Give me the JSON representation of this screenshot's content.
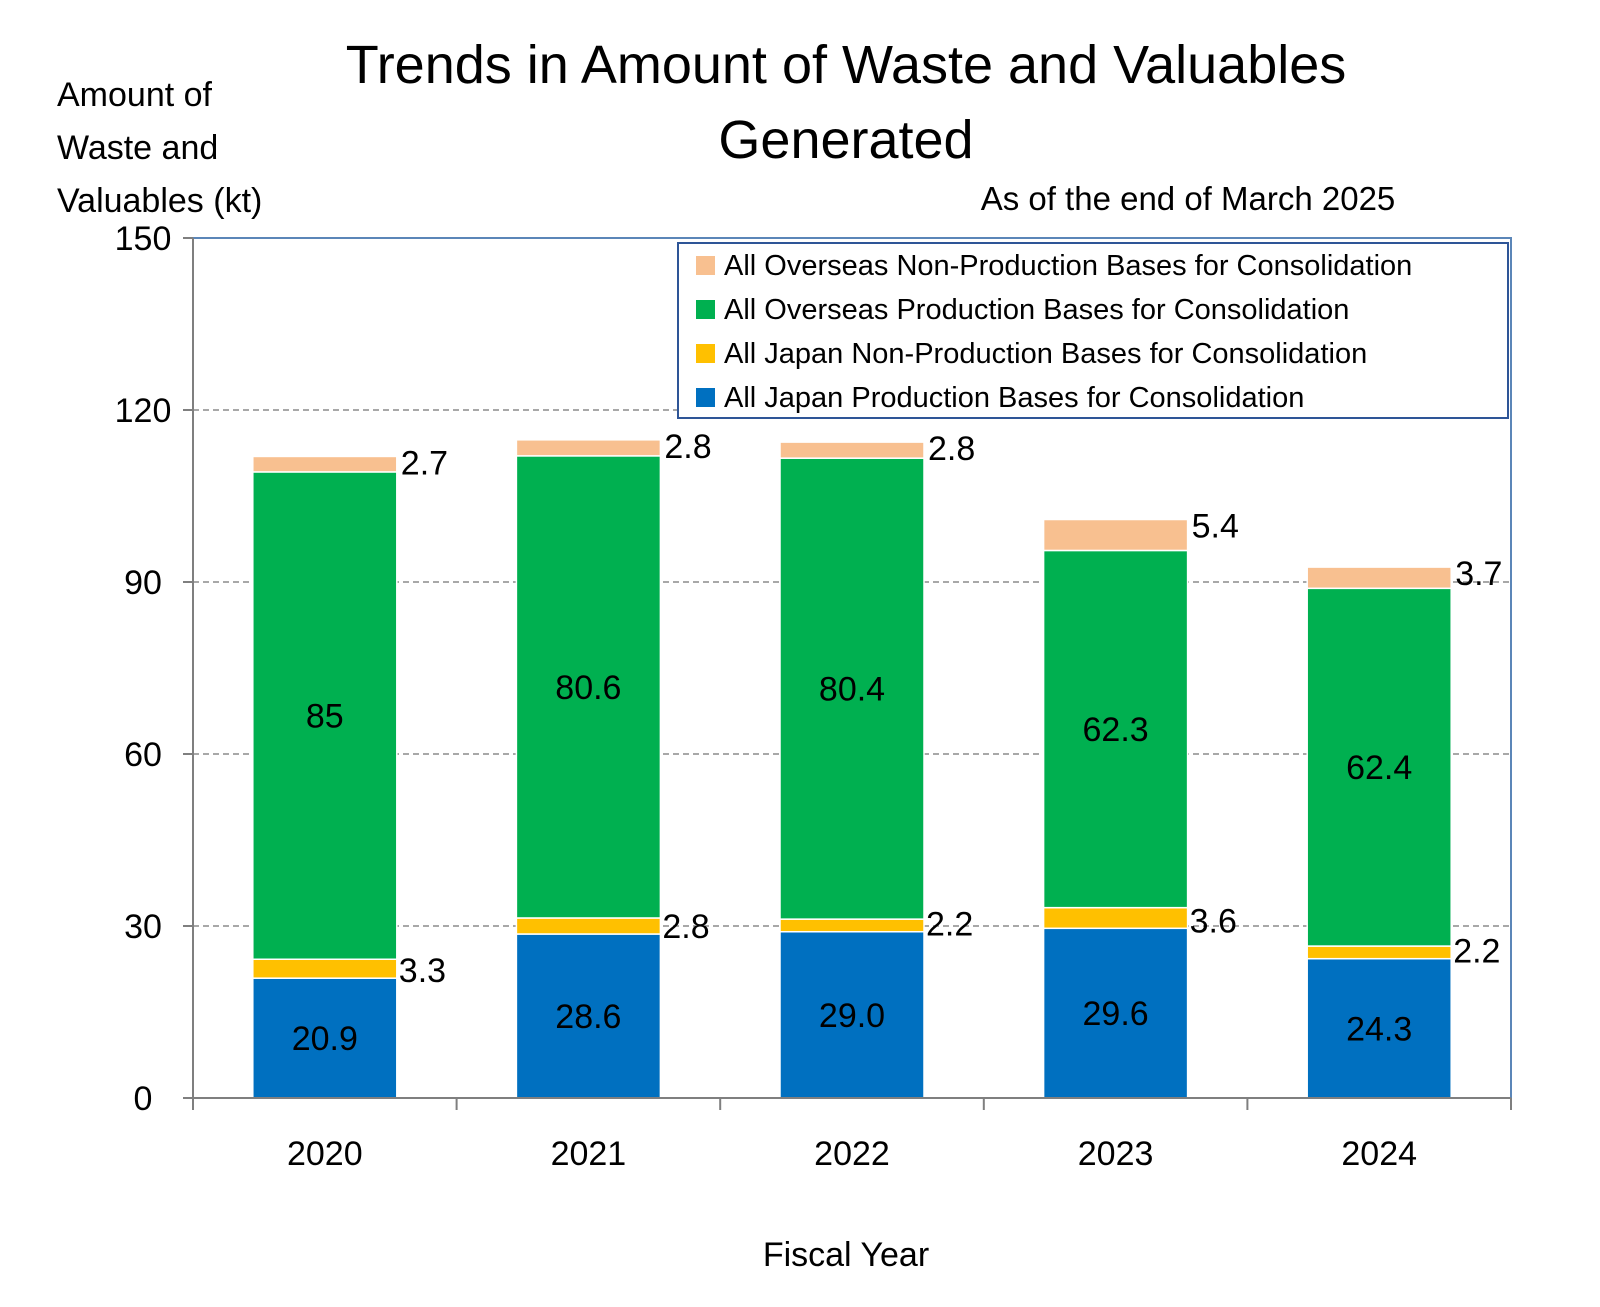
{
  "chart_data": {
    "type": "bar",
    "stacked": true,
    "title_lines": [
      "Trends in Amount of Waste and Valuables",
      "Generated"
    ],
    "subtitle": "As of the end of  March  2025",
    "ylabel_lines": [
      "Amount of",
      "Waste and",
      "Valuables (kt)"
    ],
    "xlabel": "Fiscal Year",
    "categories": [
      "2020",
      "2021",
      "2022",
      "2023",
      "2024"
    ],
    "ylim": [
      0,
      150
    ],
    "yticks": [
      0,
      30,
      60,
      90,
      120,
      150
    ],
    "grid": true,
    "legend_position": "top-right",
    "series": [
      {
        "name": "All Japan Production Bases for Consolidation",
        "color": "#0070C0",
        "values": [
          20.9,
          28.6,
          29.0,
          29.6,
          24.3
        ],
        "labels": [
          "20.9",
          "28.6",
          "29.0",
          "29.6",
          "24.3"
        ]
      },
      {
        "name": "All Japan Non-Production Bases for Consolidation",
        "color": "#FFC000",
        "values": [
          3.3,
          2.8,
          2.2,
          3.6,
          2.2
        ],
        "labels": [
          "3.3",
          "2.8",
          "2.2",
          "3.6",
          "2.2"
        ]
      },
      {
        "name": "All Overseas Production Bases for Consolidation",
        "color": "#00B050",
        "values": [
          85,
          80.6,
          80.4,
          62.3,
          62.4
        ],
        "labels": [
          "85",
          "80.6",
          "80.4",
          "62.3",
          "62.4"
        ]
      },
      {
        "name": "All Overseas Non-Production Bases for Consolidation",
        "color": "#F8C090",
        "values": [
          2.7,
          2.8,
          2.8,
          5.4,
          3.7
        ],
        "labels": [
          "2.7",
          "2.8",
          "2.8",
          "5.4",
          "3.7"
        ]
      }
    ]
  }
}
